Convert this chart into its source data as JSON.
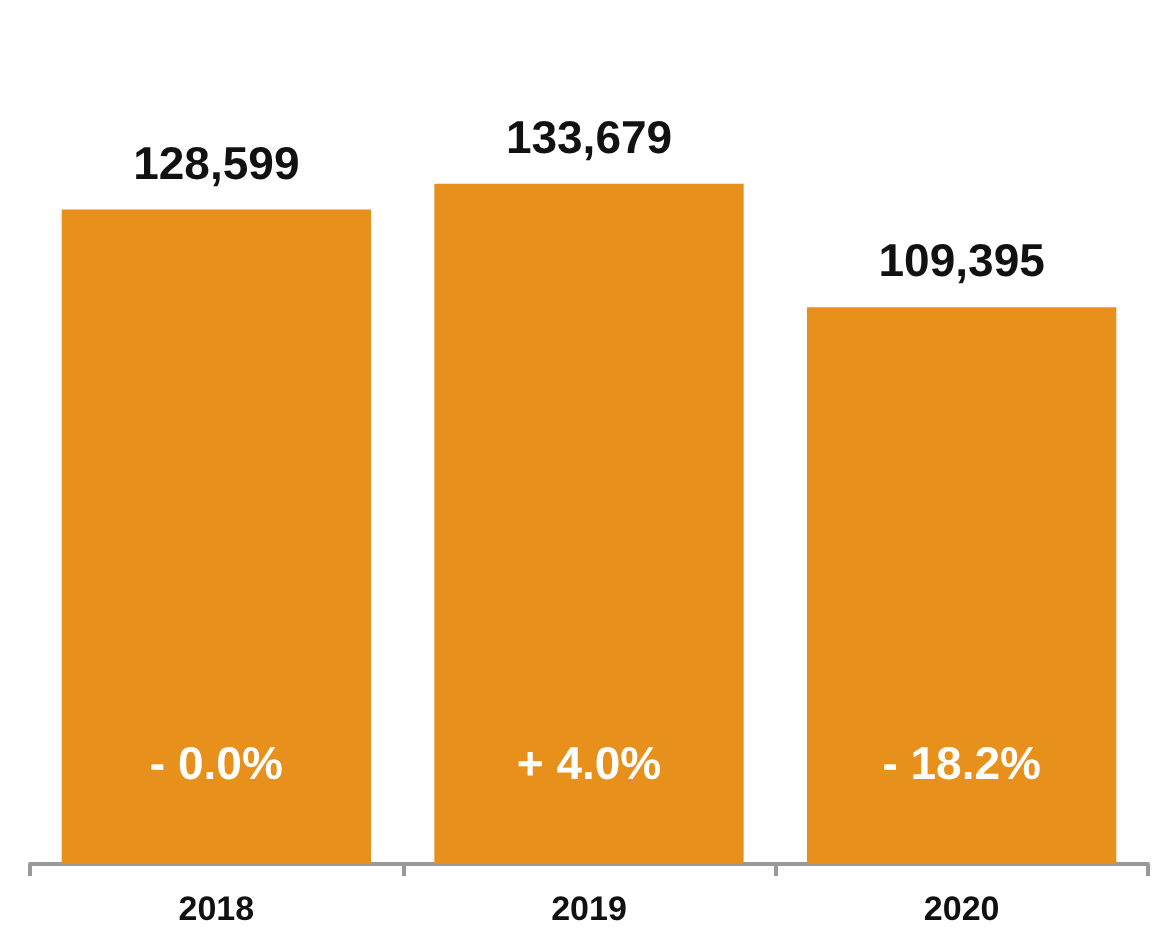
{
  "chart_data": {
    "type": "bar",
    "categories": [
      "2018",
      "2019",
      "2020"
    ],
    "values": [
      128599,
      133679,
      109395
    ],
    "color": "#e8901c",
    "value_labels": [
      "128,599",
      "133,679",
      "109,395"
    ],
    "annotations": [
      "- 0.0%",
      "+ 4.0%",
      "- 18.2%"
    ]
  }
}
